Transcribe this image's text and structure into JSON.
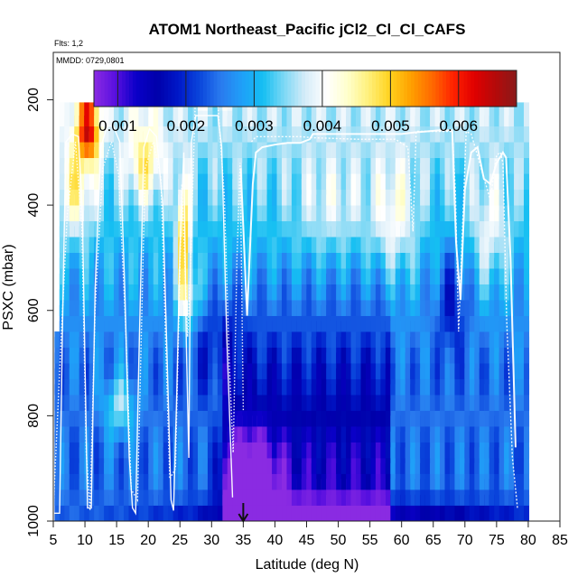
{
  "chart_data": {
    "type": "heatmap",
    "title": "ATOM1 Northeast_Pacific jCl2_Cl_Cl_CAFS",
    "flights_label": "Flts: 1,2",
    "dates_label": "MMDD: 0729,0801",
    "xlabel": "Latitude (deg N)",
    "ylabel": "PSXC (mbar)",
    "xlim": [
      5,
      85
    ],
    "ylim": [
      1000,
      110
    ],
    "xticks": [
      "5",
      "10",
      "15",
      "20",
      "25",
      "30",
      "35",
      "40",
      "45",
      "50",
      "55",
      "60",
      "65",
      "70",
      "75",
      "80",
      "85"
    ],
    "yticks": [
      "200",
      "400",
      "600",
      "800",
      "1000"
    ],
    "colorbar": {
      "range": [
        0.00065,
        0.00685
      ],
      "ticks": [
        "0.001",
        "0.002",
        "0.003",
        "0.004",
        "0.005",
        "0.006"
      ],
      "colors": [
        "#8a2be2",
        "#5a10e0",
        "#0a00c8",
        "#0000aa",
        "#0018c8",
        "#0a46dc",
        "#2a7aee",
        "#1f9ff8",
        "#15bff2",
        "#7dd8f5",
        "#d6ecf8",
        "#ffffff",
        "#ffffcc",
        "#fff07a",
        "#ffd21e",
        "#ffa000",
        "#ff6a00",
        "#ff2200",
        "#e00000",
        "#b40a0a",
        "#8a1a1a"
      ]
    },
    "marker_latitude": 35,
    "flight_tracks": [
      [
        [
          5,
          985
        ],
        [
          6,
          985
        ],
        [
          6.5,
          600
        ],
        [
          7,
          280
        ],
        [
          8,
          265
        ],
        [
          9,
          270
        ],
        [
          9.6,
          420
        ],
        [
          10,
          700
        ],
        [
          10.4,
          975
        ],
        [
          11,
          975
        ],
        [
          11.6,
          560
        ],
        [
          12.5,
          290
        ],
        [
          13.5,
          250
        ],
        [
          14.5,
          250
        ],
        [
          15.5,
          280
        ],
        [
          16.3,
          560
        ],
        [
          17,
          880
        ],
        [
          17.5,
          975
        ],
        [
          18,
          985
        ],
        [
          18.5,
          700
        ],
        [
          19.3,
          290
        ],
        [
          20.2,
          255
        ],
        [
          21.3,
          270
        ],
        [
          22.3,
          400
        ],
        [
          23,
          700
        ],
        [
          23.6,
          960
        ],
        [
          24,
          980
        ],
        [
          24.5,
          760
        ],
        [
          25,
          480
        ],
        [
          25.6,
          300
        ],
        [
          26,
          660
        ],
        [
          26.4,
          880
        ],
        [
          26.8,
          280
        ],
        [
          27.5,
          230
        ],
        [
          31,
          230
        ],
        [
          31.6,
          290
        ],
        [
          32.4,
          650
        ],
        [
          33,
          850
        ],
        [
          33.3,
          955
        ]
      ],
      [
        [
          5,
          975
        ],
        [
          6.3,
          640
        ],
        [
          7.2,
          420
        ],
        [
          8.5,
          280
        ],
        [
          9.5,
          440
        ],
        [
          10.2,
          870
        ],
        [
          10.8,
          980
        ],
        [
          11.6,
          600
        ],
        [
          12.8,
          330
        ],
        [
          14.2,
          280
        ],
        [
          15.3,
          340
        ],
        [
          16.4,
          620
        ],
        [
          17.3,
          940
        ],
        [
          18.3,
          960
        ],
        [
          19.5,
          330
        ],
        [
          20.8,
          280
        ],
        [
          22,
          350
        ],
        [
          22.8,
          680
        ],
        [
          23.4,
          920
        ],
        [
          24.3,
          900
        ],
        [
          25.3,
          360
        ],
        [
          26.2,
          650
        ],
        [
          26.6,
          540
        ],
        [
          27.4,
          210
        ],
        [
          31,
          210
        ],
        [
          32,
          380
        ],
        [
          32.8,
          700
        ],
        [
          33.4,
          870
        ],
        [
          34,
          500
        ],
        [
          34.5,
          320
        ],
        [
          35,
          790
        ]
      ],
      [
        [
          34.6,
          330
        ],
        [
          35.6,
          610
        ],
        [
          36.5,
          360
        ],
        [
          37,
          300
        ],
        [
          38,
          290
        ],
        [
          40,
          285
        ],
        [
          42,
          282
        ],
        [
          44,
          282
        ],
        [
          45.5,
          275
        ],
        [
          46,
          265
        ],
        [
          52,
          265
        ],
        [
          57,
          265
        ],
        [
          60,
          265
        ],
        [
          62,
          262
        ],
        [
          64,
          260
        ],
        [
          66,
          258
        ],
        [
          68,
          258
        ],
        [
          68.6,
          470
        ],
        [
          69.3,
          580
        ],
        [
          70,
          370
        ],
        [
          71,
          300
        ],
        [
          72,
          290
        ],
        [
          73,
          350
        ],
        [
          74,
          360
        ],
        [
          75,
          320
        ],
        [
          76,
          300
        ],
        [
          76.5,
          310
        ],
        [
          77.2,
          500
        ],
        [
          78,
          860
        ]
      ],
      [
        [
          36.3,
          280
        ],
        [
          37,
          270
        ],
        [
          44,
          270
        ],
        [
          46,
          272
        ],
        [
          53,
          275
        ],
        [
          59,
          275
        ],
        [
          61,
          290
        ],
        [
          61.8,
          450
        ],
        [
          62.3,
          260
        ],
        [
          68,
          260
        ],
        [
          68.5,
          375
        ],
        [
          69,
          640
        ],
        [
          70.2,
          260
        ],
        [
          71,
          265
        ],
        [
          74,
          390
        ],
        [
          75,
          305
        ],
        [
          75.6,
          300
        ],
        [
          76,
          320
        ],
        [
          76.6,
          620
        ],
        [
          77.5,
          880
        ],
        [
          78.3,
          975
        ]
      ]
    ]
  }
}
